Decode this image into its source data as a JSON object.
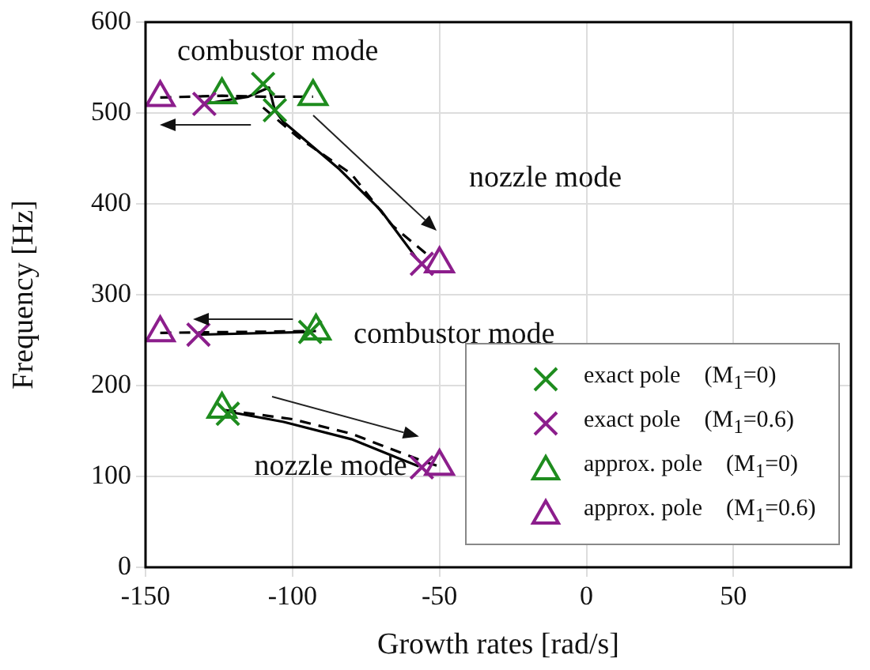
{
  "chart_data": {
    "type": "scatter",
    "xlabel": "Growth rates [rad/s]",
    "ylabel": "Frequency [Hz]",
    "xlim": [
      -150,
      90
    ],
    "xticks": [
      -150,
      -100,
      -50,
      0,
      50
    ],
    "ylim": [
      0,
      600
    ],
    "yticks": [
      0,
      100,
      200,
      300,
      400,
      500,
      600
    ],
    "grid": true,
    "legend": "bottom right",
    "series": [
      {
        "type": "line",
        "color": "#000000",
        "line_style": "solid",
        "marker": "none",
        "x": [
          -130,
          -115,
          -108,
          -106,
          -103,
          -84,
          -70,
          -58
        ],
        "values": [
          510,
          518,
          528,
          503,
          490,
          438,
          393,
          341
        ]
      },
      {
        "type": "line",
        "color": "#000000",
        "line_style": "dashed",
        "marker": "none",
        "x": [
          -145,
          -124,
          -110,
          -93
        ],
        "values": [
          517,
          519,
          518,
          518
        ]
      },
      {
        "type": "line",
        "color": "#000000",
        "line_style": "dashed",
        "marker": "none",
        "x": [
          -110,
          -98,
          -80,
          -66,
          -53
        ],
        "values": [
          506,
          473,
          433,
          376,
          341
        ]
      },
      {
        "type": "line",
        "color": "#000000",
        "line_style": "solid",
        "marker": "none",
        "x": [
          -132,
          -94
        ],
        "values": [
          256,
          259
        ]
      },
      {
        "type": "line",
        "color": "#000000",
        "line_style": "dashed",
        "marker": "none",
        "x": [
          -145,
          -92
        ],
        "values": [
          258,
          260
        ]
      },
      {
        "type": "line",
        "color": "#000000",
        "line_style": "solid",
        "marker": "none",
        "x": [
          -123,
          -103,
          -80,
          -57
        ],
        "values": [
          172,
          160,
          141,
          111
        ]
      },
      {
        "type": "line",
        "color": "#000000",
        "line_style": "dashed",
        "marker": "none",
        "x": [
          -123,
          -100,
          -80,
          -55,
          -50
        ],
        "values": [
          173,
          163,
          147,
          116,
          111
        ]
      },
      {
        "name": "exact pole    (M$_{1}$=0)",
        "color": "#1e8c1e",
        "marker": "cross",
        "x": [
          -110,
          -106,
          -94,
          -122
        ],
        "values": [
          532,
          503,
          259,
          169
        ]
      },
      {
        "name": "exact pole    (M$_{1}$=0.6)",
        "color": "#8c1e8c",
        "marker": "cross",
        "x": [
          -130,
          -56,
          -132,
          -56
        ],
        "values": [
          510,
          334,
          256,
          110
        ]
      },
      {
        "name": "approx. pole    (M$_{1}$=0)",
        "color": "#1e8c1e",
        "marker": "triangle",
        "x": [
          -124,
          -93,
          -92,
          -124
        ],
        "values": [
          520,
          518,
          260,
          174
        ]
      },
      {
        "name": "approx. pole    (M$_{1}$=0.6)",
        "color": "#8c1e8c",
        "marker": "triangle",
        "x": [
          -145,
          -50,
          -145,
          -50
        ],
        "values": [
          517,
          334,
          258,
          111
        ]
      }
    ],
    "annotations": [
      "combustor mode",
      "nozzle mode",
      "combustor mode",
      "nozzle mode"
    ]
  }
}
